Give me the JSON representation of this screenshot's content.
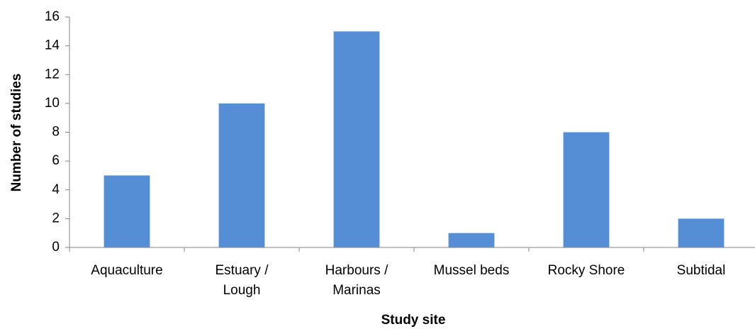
{
  "chart_data": {
    "type": "bar",
    "x_label": "Study site",
    "y_label": "Number of studies",
    "categories": [
      "Aquaculture",
      "Estuary /\nLough",
      "Harbours /\nMarinas",
      "Mussel beds",
      "Rocky Shore",
      "Subtidal"
    ],
    "values": [
      5,
      10,
      15,
      1,
      8,
      2
    ],
    "color": "#558ed5",
    "ylim": [
      0,
      16
    ],
    "yticks": [
      0,
      2,
      4,
      6,
      8,
      10,
      12,
      14,
      16
    ],
    "grid": false
  }
}
